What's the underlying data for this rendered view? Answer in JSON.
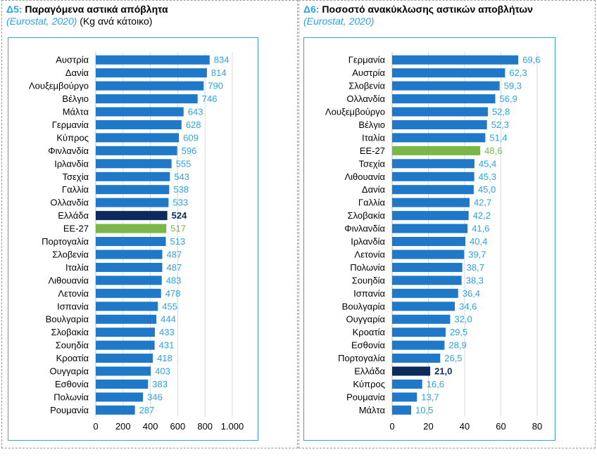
{
  "panels": [
    {
      "code": "Δ5:",
      "title": "Παραγόμενα αστικά απόβλητα",
      "source": "(Eurostat, 2020)",
      "unit": "(Kg ανά κάτοικο)"
    },
    {
      "code": "Δ6:",
      "title": "Ποσοστό ανακύκλωσης αστικών αποβλήτων",
      "source": "(Eurostat, 2020)",
      "unit": ""
    }
  ],
  "colors": {
    "bar": "#1f78c8",
    "highlight_greece": "#0d2a5c",
    "highlight_eu": "#7ab648",
    "value_label": "#2aa4e0",
    "border": "#3aa3d6"
  },
  "chart_data": [
    {
      "type": "bar",
      "orientation": "horizontal",
      "title": "Παραγόμενα αστικά απόβλητα",
      "categories": [
        "Αυστρία",
        "Δανία",
        "Λουξεμβούργο",
        "Βέλγιο",
        "Μάλτα",
        "Γερμανία",
        "Κύπρος",
        "Φινλανδία",
        "Ιρλανδία",
        "Τσεχία",
        "Γαλλία",
        "Ολλανδία",
        "Ελλάδα",
        "ΕΕ-27",
        "Πορτογαλία",
        "Σλοβενία",
        "Ιταλία",
        "Λιθουανία",
        "Λετονία",
        "Ισπανία",
        "Βουλγαρία",
        "Σλοβακία",
        "Σουηδία",
        "Κροατία",
        "Ουγγαρία",
        "Εσθονία",
        "Πολωνία",
        "Ρουμανία"
      ],
      "values": [
        834,
        814,
        790,
        746,
        643,
        628,
        609,
        596,
        555,
        543,
        538,
        533,
        524,
        517,
        513,
        487,
        487,
        483,
        478,
        455,
        444,
        433,
        431,
        418,
        403,
        383,
        346,
        287
      ],
      "labels": [
        "834",
        "814",
        "790",
        "746",
        "643",
        "628",
        "609",
        "596",
        "555",
        "543",
        "538",
        "533",
        "524",
        "517",
        "513",
        "487",
        "487",
        "483",
        "478",
        "455",
        "444",
        "433",
        "431",
        "418",
        "403",
        "383",
        "346",
        "287"
      ],
      "highlight": {
        "Ελλάδα": "greece",
        "ΕΕ-27": "eu"
      },
      "xlim": [
        0,
        1000
      ],
      "xticks": [
        0,
        200,
        400,
        600,
        800,
        1000
      ],
      "xtick_labels": [
        "0",
        "200",
        "400",
        "600",
        "800",
        "1.000"
      ],
      "grid": true
    },
    {
      "type": "bar",
      "orientation": "horizontal",
      "title": "Ποσοστό ανακύκλωσης αστικών αποβλήτων",
      "categories": [
        "Γερμανία",
        "Αυστρία",
        "Σλοβενία",
        "Ολλανδία",
        "Λουξεμβούργο",
        "Βέλγιο",
        "Ιταλία",
        "ΕΕ-27",
        "Τσεχία",
        "Λιθουανία",
        "Δανία",
        "Γαλλία",
        "Σλοβακία",
        "Φινλανδία",
        "Ιρλανδία",
        "Λετονία",
        "Πολωνία",
        "Σουηδία",
        "Ισπανία",
        "Βουλγαρία",
        "Ουγγαρία",
        "Κροατία",
        "Εσθονία",
        "Πορτογαλία",
        "Ελλάδα",
        "Κύπρος",
        "Ρουμανία",
        "Μάλτα"
      ],
      "values": [
        69.6,
        62.3,
        59.3,
        56.9,
        52.8,
        52.3,
        51.4,
        48.6,
        45.4,
        45.3,
        45.0,
        42.7,
        42.2,
        41.6,
        40.4,
        39.7,
        38.7,
        38.3,
        36.4,
        34.6,
        32.0,
        29.5,
        28.9,
        26.5,
        21.0,
        16.6,
        13.7,
        10.5
      ],
      "labels": [
        "69,6",
        "62,3",
        "59,3",
        "56,9",
        "52,8",
        "52,3",
        "51,4",
        "48,6",
        "45,4",
        "45,3",
        "45,0",
        "42,7",
        "42,2",
        "41,6",
        "40,4",
        "39,7",
        "38,7",
        "38,3",
        "36,4",
        "34,6",
        "32,0",
        "29,5",
        "28,9",
        "26,5",
        "21,0",
        "16,6",
        "13,7",
        "10,5"
      ],
      "highlight": {
        "Ελλάδα": "greece",
        "ΕΕ-27": "eu"
      },
      "xlim": [
        0,
        80
      ],
      "xticks": [
        0,
        20,
        40,
        60,
        80
      ],
      "xtick_labels": [
        "0",
        "20",
        "40",
        "60",
        "80"
      ],
      "grid": true
    }
  ]
}
